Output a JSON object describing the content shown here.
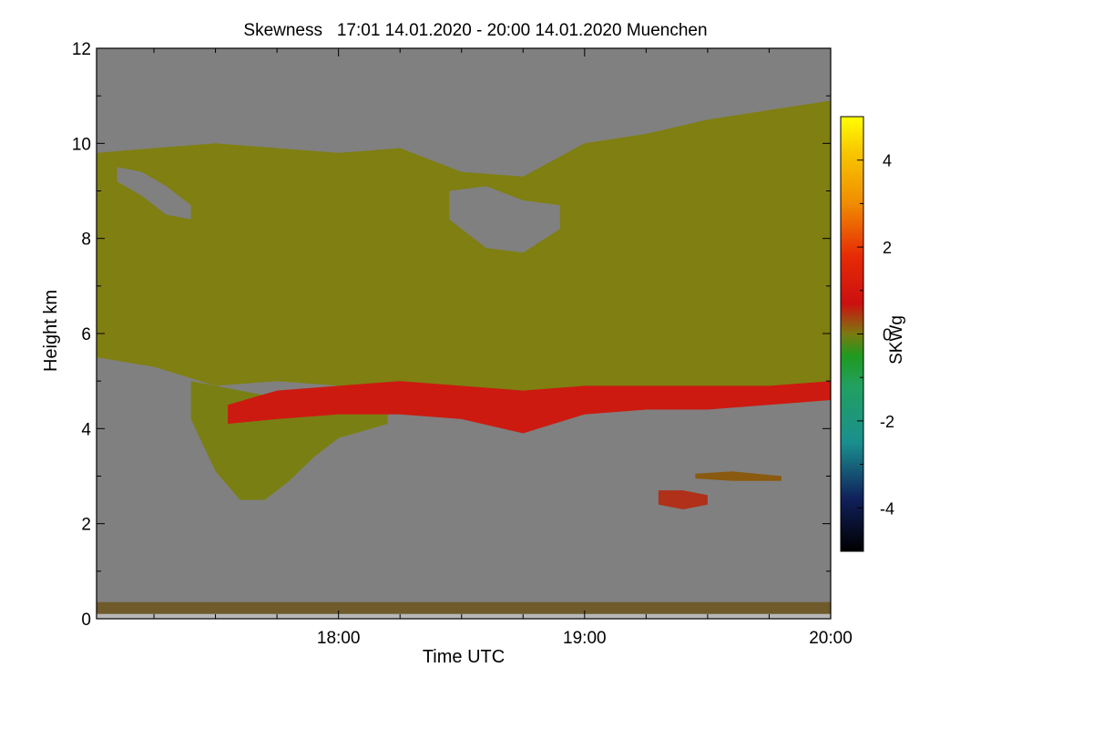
{
  "chart_data": {
    "type": "heatmap",
    "title": "Skewness   17:01 14.01.2020 - 20:00 14.01.2020 Muenchen",
    "xlabel": "Time UTC",
    "ylabel": "Height km",
    "x_range": [
      "17:01",
      "20:00"
    ],
    "x_range_hours": [
      17.0167,
      20.0
    ],
    "ylim": [
      0,
      12
    ],
    "xticks": [
      {
        "value": 18.0,
        "label": "18:00"
      },
      {
        "value": 19.0,
        "label": "19:00"
      },
      {
        "value": 20.0,
        "label": "20:00"
      }
    ],
    "yticks": [
      {
        "value": 0,
        "label": "0"
      },
      {
        "value": 2,
        "label": "2"
      },
      {
        "value": 4,
        "label": "4"
      },
      {
        "value": 6,
        "label": "6"
      },
      {
        "value": 8,
        "label": "8"
      },
      {
        "value": 10,
        "label": "10"
      },
      {
        "value": 12,
        "label": "12"
      }
    ],
    "colorbar": {
      "label": "SKWg",
      "range": [
        -5,
        5
      ],
      "ticks": [
        {
          "value": 4,
          "label": "4"
        },
        {
          "value": 2,
          "label": "2"
        },
        {
          "value": 0,
          "label": "0"
        },
        {
          "value": -2,
          "label": "-2"
        },
        {
          "value": -4,
          "label": "-4"
        }
      ],
      "stops": [
        {
          "value": -5,
          "color": "#000000"
        },
        {
          "value": -3.8,
          "color": "#10205a"
        },
        {
          "value": -2.5,
          "color": "#1a8f8f"
        },
        {
          "value": -1.2,
          "color": "#22a060"
        },
        {
          "value": -0.5,
          "color": "#1f9a1f"
        },
        {
          "value": 0,
          "color": "#7a7a10"
        },
        {
          "value": 0.7,
          "color": "#cc1010"
        },
        {
          "value": 1.8,
          "color": "#e62b05"
        },
        {
          "value": 3.0,
          "color": "#f08c00"
        },
        {
          "value": 4.2,
          "color": "#f8c800"
        },
        {
          "value": 5,
          "color": "#ffff00"
        }
      ]
    },
    "no_data_color": "#808080",
    "regions": [
      {
        "name": "upper-cloud-band",
        "dominant_skewness": 0,
        "color": "#7f7f12",
        "time_h": [
          17.0167,
          17.25,
          17.5,
          17.75,
          18.0,
          18.25,
          18.5,
          18.75,
          19.0,
          19.25,
          19.5,
          19.75,
          20.0
        ],
        "top_km": [
          9.8,
          9.9,
          10.0,
          9.9,
          9.8,
          9.9,
          9.4,
          9.3,
          10.0,
          10.2,
          10.5,
          10.7,
          10.9
        ],
        "base_km": [
          5.5,
          5.3,
          4.9,
          5.0,
          4.9,
          4.8,
          4.6,
          4.5,
          4.6,
          4.7,
          4.6,
          4.5,
          4.6
        ]
      },
      {
        "name": "fall-streak",
        "dominant_skewness": 0,
        "color": "#7a7f14",
        "time_h": [
          17.4,
          17.5,
          17.6,
          17.7,
          17.8,
          17.9,
          18.0,
          18.2
        ],
        "top_km": [
          5.0,
          4.9,
          4.8,
          4.7,
          4.6,
          4.5,
          4.5,
          4.4
        ],
        "base_km": [
          4.2,
          3.1,
          2.5,
          2.5,
          2.9,
          3.4,
          3.8,
          4.1
        ]
      },
      {
        "name": "red-positive-layer",
        "dominant_skewness": 1.3,
        "color": "#cc1a10",
        "time_h": [
          17.55,
          17.75,
          18.0,
          18.25,
          18.5,
          18.75,
          19.0,
          19.25,
          19.5,
          19.75,
          20.0
        ],
        "top_km": [
          4.5,
          4.8,
          4.9,
          5.0,
          4.9,
          4.8,
          4.9,
          4.9,
          4.9,
          4.9,
          5.0
        ],
        "base_km": [
          4.1,
          4.2,
          4.3,
          4.3,
          4.2,
          3.9,
          4.3,
          4.4,
          4.4,
          4.5,
          4.6
        ]
      },
      {
        "name": "clear-gap-1",
        "dominant_skewness": null,
        "color": "#808080",
        "time_h": [
          17.1,
          17.2,
          17.3,
          17.4
        ],
        "top_km": [
          9.5,
          9.4,
          9.1,
          8.7
        ],
        "base_km": [
          9.2,
          8.9,
          8.5,
          8.4
        ]
      },
      {
        "name": "clear-gap-2",
        "dominant_skewness": null,
        "color": "#808080",
        "time_h": [
          18.45,
          18.6,
          18.75,
          18.9
        ],
        "top_km": [
          9.0,
          9.1,
          8.8,
          8.7
        ],
        "base_km": [
          8.4,
          7.8,
          7.7,
          8.2
        ]
      },
      {
        "name": "low-cloud-patch",
        "dominant_skewness": 0.6,
        "color": "#8a5a10",
        "time_h": [
          19.45,
          19.6,
          19.8
        ],
        "top_km": [
          3.05,
          3.1,
          3.0
        ],
        "base_km": [
          2.95,
          2.9,
          2.9
        ]
      },
      {
        "name": "low-cloud-patch",
        "dominant_skewness": 1.0,
        "color": "#b0301a",
        "time_h": [
          19.3,
          19.4,
          19.5
        ],
        "top_km": [
          2.7,
          2.7,
          2.6
        ],
        "base_km": [
          2.4,
          2.3,
          2.4
        ]
      }
    ],
    "near_ground_noise_band_km": [
      0.1,
      0.35
    ]
  }
}
